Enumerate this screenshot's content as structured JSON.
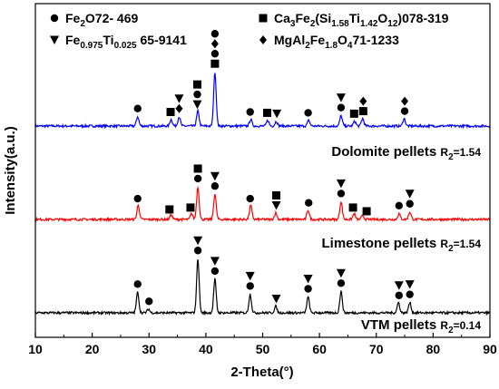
{
  "chart_data": {
    "type": "line",
    "title": "",
    "xlabel": "2-Theta(°)",
    "ylabel": "Intensity(a.u.)",
    "xlim": [
      10,
      90
    ],
    "xticks": [
      "10",
      "20",
      "30",
      "40",
      "50",
      "60",
      "70",
      "80",
      "90"
    ],
    "y_ticks_shown": false,
    "legend": {
      "placement": "top",
      "entries": [
        {
          "marker": "circle",
          "main": "Fe",
          "sub1": "2",
          "main2": "O",
          "sub2": "3",
          "tail": "72- 469"
        },
        {
          "marker": "triangle-down",
          "main": "Fe",
          "sub1": "0.975",
          "main2": "Ti",
          "sub2": "0.025",
          "tail": " 65-9141"
        },
        {
          "marker": "square",
          "text_parts": [
            "Ca",
            "3",
            "Fe",
            "2",
            "(Si",
            "1.58",
            "Ti",
            "1.42",
            "O",
            "12",
            ")078-319"
          ]
        },
        {
          "marker": "diamond",
          "text_parts": [
            "MgAl",
            "2",
            "Fe",
            "1.8",
            "O",
            "4",
            "71-1233"
          ]
        }
      ]
    },
    "series": [
      {
        "label_main": "Dolomite pellets",
        "label_r": "R",
        "label_r_sub": "2",
        "label_r_val": "=1.54",
        "color": "#0000ff",
        "offset": 2.0,
        "peaks": [
          {
            "x": 28.0,
            "h": 0.1
          },
          {
            "x": 33.9,
            "h": 0.07
          },
          {
            "x": 35.3,
            "h": 0.1
          },
          {
            "x": 38.6,
            "h": 0.16
          },
          {
            "x": 41.6,
            "h": 0.58
          },
          {
            "x": 47.9,
            "h": 0.07
          },
          {
            "x": 50.9,
            "h": 0.06
          },
          {
            "x": 52.4,
            "h": 0.05
          },
          {
            "x": 58.1,
            "h": 0.06
          },
          {
            "x": 63.8,
            "h": 0.11
          },
          {
            "x": 66.2,
            "h": 0.05
          },
          {
            "x": 67.6,
            "h": 0.08
          },
          {
            "x": 74.9,
            "h": 0.08
          }
        ],
        "markers": [
          {
            "x": 28.0,
            "stack": [
              "circle"
            ]
          },
          {
            "x": 33.8,
            "stack": [
              "square"
            ]
          },
          {
            "x": 35.3,
            "stack": [
              "diamond",
              "triangle-down"
            ]
          },
          {
            "x": 38.5,
            "stack": [
              "triangle-down",
              "circle",
              "square"
            ]
          },
          {
            "x": 41.6,
            "stack": [
              "square",
              "circle",
              "diamond",
              "circle"
            ]
          },
          {
            "x": 47.8,
            "stack": [
              "circle"
            ]
          },
          {
            "x": 50.8,
            "stack": [
              "square"
            ]
          },
          {
            "x": 52.5,
            "stack": [
              "triangle-down"
            ]
          },
          {
            "x": 58.0,
            "stack": [
              "circle"
            ]
          },
          {
            "x": 63.8,
            "stack": [
              "circle",
              "triangle-down"
            ]
          },
          {
            "x": 66.1,
            "stack": [
              "square"
            ]
          },
          {
            "x": 67.7,
            "stack": [
              "square",
              "diamond"
            ]
          },
          {
            "x": 75.0,
            "stack": [
              "circle",
              "diamond"
            ]
          }
        ]
      },
      {
        "label_main": "Limestone pellets",
        "label_r": "R",
        "label_r_sub": "2",
        "label_r_val": "=1.54",
        "color": "#ff0000",
        "offset": 1.0,
        "peaks": [
          {
            "x": 28.1,
            "h": 0.15
          },
          {
            "x": 33.9,
            "h": 0.05
          },
          {
            "x": 37.5,
            "h": 0.06
          },
          {
            "x": 38.6,
            "h": 0.35
          },
          {
            "x": 41.6,
            "h": 0.27
          },
          {
            "x": 47.9,
            "h": 0.15
          },
          {
            "x": 52.3,
            "h": 0.07
          },
          {
            "x": 58.0,
            "h": 0.1
          },
          {
            "x": 63.8,
            "h": 0.19
          },
          {
            "x": 66.1,
            "h": 0.06
          },
          {
            "x": 67.6,
            "h": 0.04
          },
          {
            "x": 74.0,
            "h": 0.06
          },
          {
            "x": 75.9,
            "h": 0.08
          }
        ],
        "markers": [
          {
            "x": 28.0,
            "stack": [
              "circle"
            ]
          },
          {
            "x": 33.6,
            "stack": [
              "square"
            ]
          },
          {
            "x": 37.3,
            "stack": [
              "square"
            ]
          },
          {
            "x": 38.6,
            "stack": [
              "circle",
              "square"
            ]
          },
          {
            "x": 41.6,
            "stack": [
              "circle",
              "triangle-down"
            ]
          },
          {
            "x": 47.8,
            "stack": [
              "circle"
            ]
          },
          {
            "x": 52.4,
            "stack": [
              "triangle-down",
              "square"
            ]
          },
          {
            "x": 58.1,
            "stack": [
              "circle"
            ]
          },
          {
            "x": 63.8,
            "stack": [
              "circle",
              "triangle-down"
            ]
          },
          {
            "x": 65.9,
            "stack": [
              "square"
            ]
          },
          {
            "x": 68.3,
            "stack": [
              "square"
            ]
          },
          {
            "x": 74.0,
            "stack": [
              "circle"
            ]
          },
          {
            "x": 75.9,
            "stack": [
              "circle",
              "triangle-down"
            ]
          }
        ]
      },
      {
        "label_main": "VTM pellets",
        "label_r": "R",
        "label_r_sub": "2",
        "label_r_val": "=0.14",
        "color": "#000000",
        "offset": 0.0,
        "peaks": [
          {
            "x": 28.0,
            "h": 0.22
          },
          {
            "x": 29.9,
            "h": 0.04
          },
          {
            "x": 38.6,
            "h": 0.58
          },
          {
            "x": 41.6,
            "h": 0.36
          },
          {
            "x": 47.8,
            "h": 0.2
          },
          {
            "x": 52.3,
            "h": 0.07
          },
          {
            "x": 58.0,
            "h": 0.17
          },
          {
            "x": 63.8,
            "h": 0.23
          },
          {
            "x": 73.9,
            "h": 0.11
          },
          {
            "x": 75.9,
            "h": 0.11
          }
        ],
        "markers": [
          {
            "x": 28.0,
            "stack": [
              "circle"
            ]
          },
          {
            "x": 30.0,
            "stack": [
              "circle"
            ]
          },
          {
            "x": 38.6,
            "stack": [
              "circle",
              "triangle-down"
            ]
          },
          {
            "x": 41.6,
            "stack": [
              "circle",
              "triangle-down"
            ]
          },
          {
            "x": 47.8,
            "stack": [
              "circle",
              "triangle-down"
            ]
          },
          {
            "x": 52.4,
            "stack": [
              "triangle-down"
            ]
          },
          {
            "x": 58.0,
            "stack": [
              "circle",
              "triangle-down"
            ]
          },
          {
            "x": 63.8,
            "stack": [
              "circle",
              "triangle-down"
            ]
          },
          {
            "x": 74.0,
            "stack": [
              "circle",
              "triangle-down"
            ]
          },
          {
            "x": 75.9,
            "stack": [
              "circle",
              "triangle-down"
            ]
          }
        ]
      }
    ]
  }
}
